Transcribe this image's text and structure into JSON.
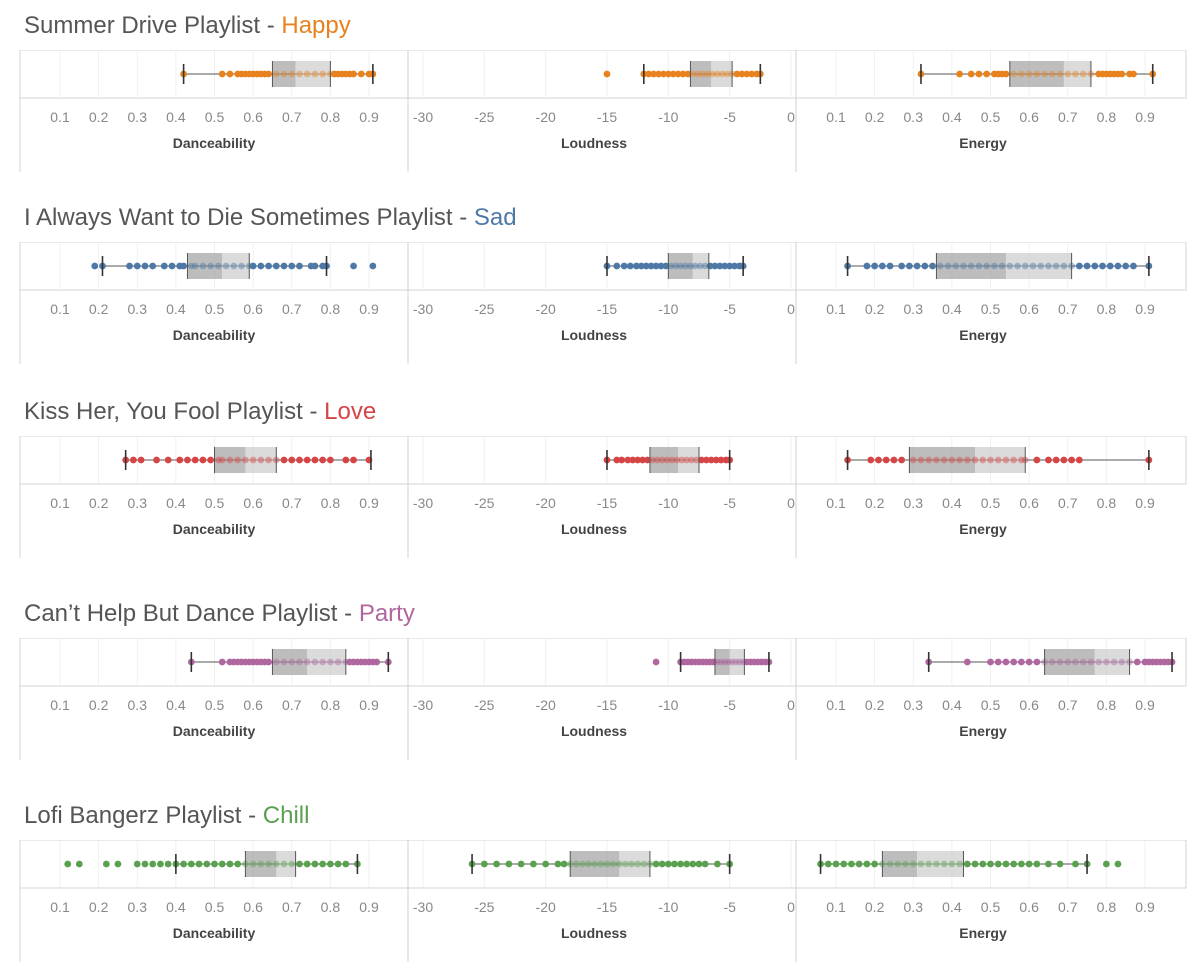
{
  "chart_data": [
    {
      "type": "box",
      "title_prefix": "Summer Drive Playlist - ",
      "mood": "Happy",
      "color": "#e8821e",
      "panels": [
        {
          "xlabel": "Danceability",
          "ticks": [
            "0.1",
            "0.2",
            "0.3",
            "0.4",
            "0.5",
            "0.6",
            "0.7",
            "0.8",
            "0.9"
          ],
          "tick_values": [
            0.1,
            0.2,
            0.3,
            0.4,
            0.5,
            0.6,
            0.7,
            0.8,
            0.9
          ],
          "xlim": [
            0.05,
            0.95
          ],
          "whisker_low": 0.42,
          "q1": 0.65,
          "median": 0.71,
          "q3": 0.8,
          "whisker_high": 0.91,
          "points": [
            0.42,
            0.52,
            0.54,
            0.56,
            0.57,
            0.58,
            0.59,
            0.6,
            0.61,
            0.62,
            0.63,
            0.64,
            0.66,
            0.68,
            0.7,
            0.72,
            0.74,
            0.76,
            0.78,
            0.8,
            0.81,
            0.82,
            0.83,
            0.84,
            0.85,
            0.86,
            0.88,
            0.9,
            0.91
          ]
        },
        {
          "xlabel": "Loudness",
          "ticks": [
            "-30",
            "-25",
            "-20",
            "-15",
            "-10",
            "-5",
            "0"
          ],
          "tick_values": [
            -30,
            -25,
            -20,
            -15,
            -10,
            -5,
            0
          ],
          "xlim": [
            -30,
            0
          ],
          "whisker_low": -12,
          "q1": -8.2,
          "median": -6.5,
          "q3": -4.8,
          "whisker_high": -2.5,
          "points": [
            -15,
            -12,
            -11.6,
            -11.2,
            -10.8,
            -10.4,
            -10,
            -9.6,
            -9.2,
            -8.8,
            -8.4,
            -8,
            -7.6,
            -7.2,
            -6.8,
            -6.4,
            -6,
            -5.6,
            -5.2,
            -4.8,
            -4.4,
            -4,
            -3.6,
            -3.2,
            -2.8,
            -2.5
          ]
        },
        {
          "xlabel": "Energy",
          "ticks": [
            "0.1",
            "0.2",
            "0.3",
            "0.4",
            "0.5",
            "0.6",
            "0.7",
            "0.8",
            "0.9"
          ],
          "tick_values": [
            0.1,
            0.2,
            0.3,
            0.4,
            0.5,
            0.6,
            0.7,
            0.8,
            0.9
          ],
          "xlim": [
            0.05,
            0.95
          ],
          "whisker_low": 0.32,
          "q1": 0.55,
          "median": 0.69,
          "q3": 0.76,
          "whisker_high": 0.92,
          "points": [
            0.32,
            0.42,
            0.45,
            0.47,
            0.49,
            0.51,
            0.52,
            0.53,
            0.54,
            0.56,
            0.58,
            0.6,
            0.62,
            0.64,
            0.66,
            0.68,
            0.7,
            0.72,
            0.74,
            0.76,
            0.78,
            0.79,
            0.8,
            0.81,
            0.82,
            0.83,
            0.84,
            0.86,
            0.87,
            0.92
          ]
        }
      ]
    },
    {
      "type": "box",
      "title_prefix": "I Always Want to Die Sometimes Playlist - ",
      "mood": "Sad",
      "color": "#4e79a7",
      "panels": [
        {
          "xlabel": "Danceability",
          "ticks": [
            "0.1",
            "0.2",
            "0.3",
            "0.4",
            "0.5",
            "0.6",
            "0.7",
            "0.8",
            "0.9"
          ],
          "tick_values": [
            0.1,
            0.2,
            0.3,
            0.4,
            0.5,
            0.6,
            0.7,
            0.8,
            0.9
          ],
          "xlim": [
            0.05,
            0.95
          ],
          "whisker_low": 0.21,
          "q1": 0.43,
          "median": 0.52,
          "q3": 0.59,
          "whisker_high": 0.79,
          "points": [
            0.19,
            0.21,
            0.28,
            0.3,
            0.32,
            0.34,
            0.37,
            0.39,
            0.41,
            0.42,
            0.44,
            0.45,
            0.47,
            0.49,
            0.51,
            0.53,
            0.55,
            0.57,
            0.59,
            0.6,
            0.62,
            0.64,
            0.66,
            0.68,
            0.7,
            0.72,
            0.75,
            0.76,
            0.78,
            0.79,
            0.86,
            0.91
          ]
        },
        {
          "xlabel": "Loudness",
          "ticks": [
            "-30",
            "-25",
            "-20",
            "-15",
            "-10",
            "-5",
            "0"
          ],
          "tick_values": [
            -30,
            -25,
            -20,
            -15,
            -10,
            -5,
            0
          ],
          "xlim": [
            -30,
            0
          ],
          "whisker_low": -15,
          "q1": -10,
          "median": -8,
          "q3": -6.7,
          "whisker_high": -3.9,
          "points": [
            -15,
            -14.2,
            -13.6,
            -13.1,
            -12.6,
            -12.2,
            -11.8,
            -11.4,
            -11,
            -10.6,
            -10.2,
            -9.8,
            -9.4,
            -9,
            -8.6,
            -8.2,
            -7.8,
            -7.4,
            -7,
            -6.6,
            -6.2,
            -5.8,
            -5.4,
            -5,
            -4.6,
            -4.2,
            -3.9
          ]
        },
        {
          "xlabel": "Energy",
          "ticks": [
            "0.1",
            "0.2",
            "0.3",
            "0.4",
            "0.5",
            "0.6",
            "0.7",
            "0.8",
            "0.9"
          ],
          "tick_values": [
            0.1,
            0.2,
            0.3,
            0.4,
            0.5,
            0.6,
            0.7,
            0.8,
            0.9
          ],
          "xlim": [
            0.05,
            0.95
          ],
          "whisker_low": 0.13,
          "q1": 0.36,
          "median": 0.54,
          "q3": 0.71,
          "whisker_high": 0.91,
          "points": [
            0.13,
            0.18,
            0.2,
            0.22,
            0.24,
            0.27,
            0.29,
            0.31,
            0.33,
            0.35,
            0.37,
            0.39,
            0.41,
            0.43,
            0.45,
            0.47,
            0.49,
            0.51,
            0.53,
            0.55,
            0.57,
            0.59,
            0.61,
            0.63,
            0.65,
            0.67,
            0.69,
            0.71,
            0.73,
            0.75,
            0.77,
            0.79,
            0.81,
            0.83,
            0.85,
            0.87,
            0.91
          ]
        }
      ]
    },
    {
      "type": "box",
      "title_prefix": "Kiss Her, You Fool Playlist - ",
      "mood": "Love",
      "color": "#d64545",
      "panels": [
        {
          "xlabel": "Danceability",
          "ticks": [
            "0.1",
            "0.2",
            "0.3",
            "0.4",
            "0.5",
            "0.6",
            "0.7",
            "0.8",
            "0.9"
          ],
          "tick_values": [
            0.1,
            0.2,
            0.3,
            0.4,
            0.5,
            0.6,
            0.7,
            0.8,
            0.9
          ],
          "xlim": [
            0.05,
            0.95
          ],
          "whisker_low": 0.27,
          "q1": 0.5,
          "median": 0.58,
          "q3": 0.66,
          "whisker_high": 0.905,
          "points": [
            0.27,
            0.29,
            0.31,
            0.35,
            0.38,
            0.41,
            0.43,
            0.45,
            0.47,
            0.49,
            0.51,
            0.52,
            0.54,
            0.56,
            0.58,
            0.6,
            0.62,
            0.64,
            0.66,
            0.68,
            0.7,
            0.72,
            0.74,
            0.76,
            0.78,
            0.8,
            0.84,
            0.86,
            0.9
          ]
        },
        {
          "xlabel": "Loudness",
          "ticks": [
            "-30",
            "-25",
            "-20",
            "-15",
            "-10",
            "-5",
            "0"
          ],
          "tick_values": [
            -30,
            -25,
            -20,
            -15,
            -10,
            -5,
            0
          ],
          "xlim": [
            -30,
            0
          ],
          "whisker_low": -15,
          "q1": -11.5,
          "median": -9.2,
          "q3": -7.5,
          "whisker_high": -5,
          "points": [
            -15,
            -14.2,
            -13.8,
            -13.3,
            -12.9,
            -12.5,
            -12.1,
            -11.7,
            -11.3,
            -10.9,
            -10.5,
            -10.1,
            -9.7,
            -9.3,
            -8.9,
            -8.5,
            -8.1,
            -7.7,
            -7.3,
            -6.9,
            -6.5,
            -6.1,
            -5.7,
            -5.3,
            -5
          ]
        },
        {
          "xlabel": "Energy",
          "ticks": [
            "0.1",
            "0.2",
            "0.3",
            "0.4",
            "0.5",
            "0.6",
            "0.7",
            "0.8",
            "0.9"
          ],
          "tick_values": [
            0.1,
            0.2,
            0.3,
            0.4,
            0.5,
            0.6,
            0.7,
            0.8,
            0.9
          ],
          "xlim": [
            0.05,
            0.95
          ],
          "whisker_low": 0.13,
          "q1": 0.29,
          "median": 0.46,
          "q3": 0.59,
          "whisker_high": 0.91,
          "points": [
            0.13,
            0.19,
            0.21,
            0.23,
            0.25,
            0.27,
            0.3,
            0.32,
            0.34,
            0.36,
            0.38,
            0.4,
            0.42,
            0.44,
            0.46,
            0.48,
            0.5,
            0.52,
            0.54,
            0.56,
            0.58,
            0.59,
            0.62,
            0.65,
            0.67,
            0.69,
            0.71,
            0.73,
            0.91
          ]
        }
      ]
    },
    {
      "type": "box",
      "title_prefix": "Can’t Help But Dance Playlist - ",
      "mood": "Party",
      "color": "#b0679f",
      "panels": [
        {
          "xlabel": "Danceability",
          "ticks": [
            "0.1",
            "0.2",
            "0.3",
            "0.4",
            "0.5",
            "0.6",
            "0.7",
            "0.8",
            "0.9"
          ],
          "tick_values": [
            0.1,
            0.2,
            0.3,
            0.4,
            0.5,
            0.6,
            0.7,
            0.8,
            0.9
          ],
          "xlim": [
            0.05,
            0.95
          ],
          "whisker_low": 0.44,
          "q1": 0.65,
          "median": 0.74,
          "q3": 0.84,
          "whisker_high": 0.95,
          "points": [
            0.44,
            0.52,
            0.54,
            0.55,
            0.56,
            0.57,
            0.58,
            0.59,
            0.6,
            0.61,
            0.62,
            0.63,
            0.64,
            0.66,
            0.68,
            0.7,
            0.72,
            0.74,
            0.76,
            0.78,
            0.8,
            0.82,
            0.84,
            0.85,
            0.86,
            0.87,
            0.88,
            0.89,
            0.9,
            0.91,
            0.92,
            0.95
          ]
        },
        {
          "xlabel": "Loudness",
          "ticks": [
            "-30",
            "-25",
            "-20",
            "-15",
            "-10",
            "-5",
            "0"
          ],
          "tick_values": [
            -30,
            -25,
            -20,
            -15,
            -10,
            -5,
            0
          ],
          "xlim": [
            -30,
            0
          ],
          "whisker_low": -9,
          "q1": -6.2,
          "median": -5,
          "q3": -3.8,
          "whisker_high": -1.8,
          "points": [
            -11,
            -9,
            -8.7,
            -8.4,
            -8.1,
            -7.8,
            -7.5,
            -7.2,
            -6.9,
            -6.6,
            -6.3,
            -6,
            -5.7,
            -5.4,
            -5.1,
            -4.8,
            -4.5,
            -4.2,
            -3.9,
            -3.6,
            -3.3,
            -3,
            -2.7,
            -2.4,
            -2.1,
            -1.8
          ]
        },
        {
          "xlabel": "Energy",
          "ticks": [
            "0.1",
            "0.2",
            "0.3",
            "0.4",
            "0.5",
            "0.6",
            "0.7",
            "0.8",
            "0.9"
          ],
          "tick_values": [
            0.1,
            0.2,
            0.3,
            0.4,
            0.5,
            0.6,
            0.7,
            0.8,
            0.9
          ],
          "xlim": [
            0.05,
            0.95
          ],
          "whisker_low": 0.34,
          "q1": 0.64,
          "median": 0.77,
          "q3": 0.86,
          "whisker_high": 0.97,
          "points": [
            0.34,
            0.44,
            0.5,
            0.52,
            0.54,
            0.56,
            0.58,
            0.6,
            0.62,
            0.64,
            0.66,
            0.68,
            0.7,
            0.72,
            0.74,
            0.76,
            0.78,
            0.8,
            0.82,
            0.84,
            0.86,
            0.88,
            0.9,
            0.91,
            0.92,
            0.93,
            0.94,
            0.95,
            0.96,
            0.97
          ]
        }
      ]
    },
    {
      "type": "box",
      "title_prefix": "Lofi Bangerz Playlist - ",
      "mood": "Chill",
      "color": "#59a14f",
      "panels": [
        {
          "xlabel": "Danceability",
          "ticks": [
            "0.1",
            "0.2",
            "0.3",
            "0.4",
            "0.5",
            "0.6",
            "0.7",
            "0.8",
            "0.9"
          ],
          "tick_values": [
            0.1,
            0.2,
            0.3,
            0.4,
            0.5,
            0.6,
            0.7,
            0.8,
            0.9
          ],
          "xlim": [
            0.05,
            0.95
          ],
          "whisker_low": 0.4,
          "q1": 0.58,
          "median": 0.66,
          "q3": 0.71,
          "whisker_high": 0.87,
          "points": [
            0.12,
            0.15,
            0.22,
            0.25,
            0.3,
            0.32,
            0.34,
            0.36,
            0.38,
            0.4,
            0.42,
            0.44,
            0.46,
            0.48,
            0.5,
            0.52,
            0.54,
            0.56,
            0.58,
            0.6,
            0.62,
            0.64,
            0.66,
            0.68,
            0.7,
            0.72,
            0.74,
            0.76,
            0.78,
            0.8,
            0.82,
            0.84,
            0.87
          ]
        },
        {
          "xlabel": "Loudness",
          "ticks": [
            "-30",
            "-25",
            "-20",
            "-15",
            "-10",
            "-5",
            "0"
          ],
          "tick_values": [
            -30,
            -25,
            -20,
            -15,
            -10,
            -5,
            0
          ],
          "xlim": [
            -30,
            0
          ],
          "whisker_low": -26,
          "q1": -18,
          "median": -14,
          "q3": -11.5,
          "whisker_high": -5,
          "points": [
            -26,
            -25,
            -24,
            -23,
            -22,
            -21,
            -20,
            -19,
            -18.5,
            -18,
            -17.5,
            -17,
            -16.5,
            -16,
            -15.5,
            -15,
            -14.5,
            -14,
            -13.5,
            -13,
            -12.5,
            -12,
            -11.5,
            -11,
            -10.5,
            -10,
            -9.5,
            -9,
            -8.5,
            -8,
            -7.5,
            -7,
            -6,
            -5
          ]
        },
        {
          "xlabel": "Energy",
          "ticks": [
            "0.1",
            "0.2",
            "0.3",
            "0.4",
            "0.5",
            "0.6",
            "0.7",
            "0.8",
            "0.9"
          ],
          "tick_values": [
            0.1,
            0.2,
            0.3,
            0.4,
            0.5,
            0.6,
            0.7,
            0.8,
            0.9
          ],
          "xlim": [
            0.05,
            0.95
          ],
          "whisker_low": 0.06,
          "q1": 0.22,
          "median": 0.31,
          "q3": 0.43,
          "whisker_high": 0.75,
          "points": [
            0.06,
            0.08,
            0.1,
            0.12,
            0.14,
            0.16,
            0.18,
            0.2,
            0.22,
            0.24,
            0.26,
            0.28,
            0.3,
            0.32,
            0.34,
            0.36,
            0.38,
            0.4,
            0.42,
            0.44,
            0.46,
            0.48,
            0.5,
            0.52,
            0.54,
            0.56,
            0.58,
            0.6,
            0.62,
            0.65,
            0.68,
            0.72,
            0.75,
            0.8,
            0.83
          ]
        }
      ]
    }
  ]
}
